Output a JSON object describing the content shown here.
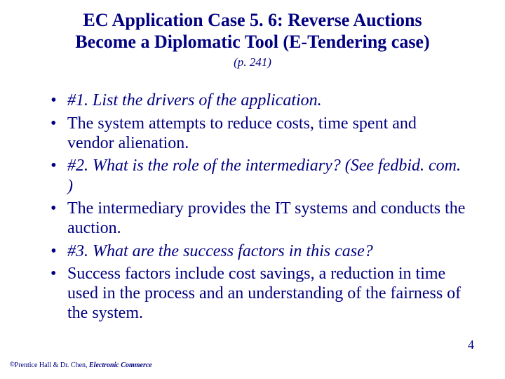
{
  "title_line1": "EC Application Case 5. 6: Reverse Auctions",
  "title_line2": "Become a Diplomatic Tool (E-Tendering case)",
  "subtitle": "(p. 241)",
  "bullets": [
    {
      "text": "#1. List the drivers of the application.",
      "italic": true
    },
    {
      "text": "The system attempts to reduce costs, time spent and vendor alienation.",
      "italic": false
    },
    {
      "text": "#2. What is the role of the intermediary? (See fedbid. com. )",
      "italic": true
    },
    {
      "text": "The intermediary provides the IT systems and conducts the auction.",
      "italic": false
    },
    {
      "text": "#3. What are the success factors in this case?",
      "italic": true
    },
    {
      "text": "Success factors include cost savings, a reduction in time used in the process and an understanding of the fairness of the system.",
      "italic": false
    }
  ],
  "page_number": "4",
  "footer_copyright": "©",
  "footer_text": "Prentice Hall & Dr. Chen, ",
  "footer_ec": "Electronic Commerce",
  "colors": {
    "text": "#000080",
    "background": "#ffffff"
  }
}
